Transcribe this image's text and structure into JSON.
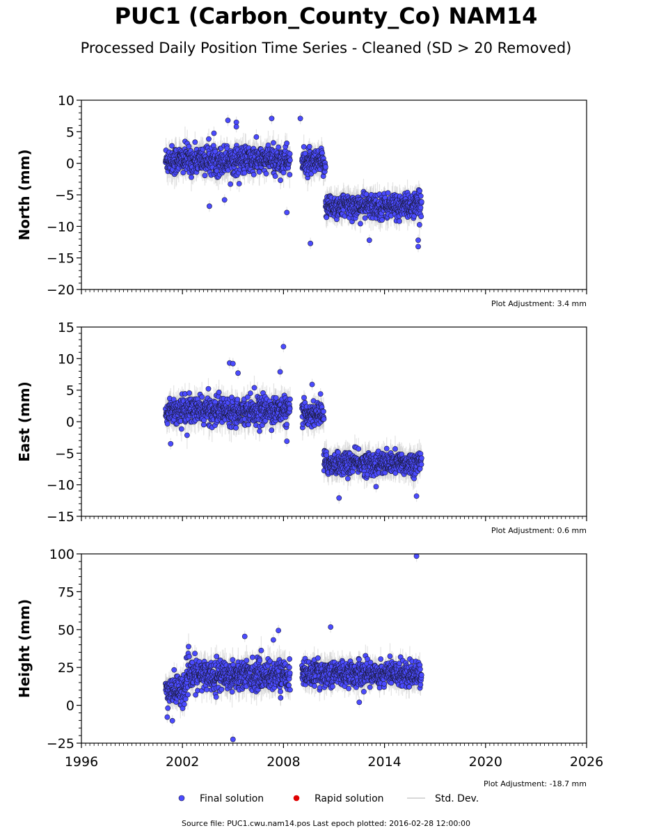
{
  "title": "PUC1 (Carbon_County_Co) NAM14",
  "subtitle": "Processed Daily Position Time Series - Cleaned (SD > 20 Removed)",
  "source_text": "Source file: PUC1.cwu.nam14.pos  Last epoch plotted: 2016-02-28 12:00:00",
  "legend": [
    {
      "label": "Final solution",
      "marker": "circle",
      "color": "#4b4bff"
    },
    {
      "label": "Rapid solution",
      "marker": "circle",
      "color": "#e00000"
    },
    {
      "label": "Std. Dev.",
      "marker": "line",
      "color": "#cccccc"
    }
  ],
  "chart_data": [
    {
      "type": "scatter",
      "ylabel": "North (mm)",
      "ylim": [
        -20,
        10
      ],
      "yticks": [
        "10",
        "5",
        "0",
        "−5",
        "−10",
        "−15",
        "−20"
      ],
      "ytick_values": [
        10,
        5,
        0,
        -5,
        -10,
        -15,
        -20
      ],
      "xlim": [
        1996,
        2026
      ],
      "adjustment": "Plot Adjustment: 3.4 mm",
      "segments": [
        {
          "x_start": 2001.0,
          "x_end": 2008.4,
          "mean": 0.5,
          "scatter": 1.6,
          "sd": 1.6
        },
        {
          "x_start": 2009.1,
          "x_end": 2010.5,
          "mean": 0.0,
          "scatter": 1.4,
          "sd": 1.5
        },
        {
          "x_start": 2010.5,
          "x_end": 2016.2,
          "mean": -6.8,
          "scatter": 1.4,
          "sd": 1.5
        }
      ],
      "outliers": [
        {
          "x": 2004.7,
          "y": 6.8
        },
        {
          "x": 2005.2,
          "y": 6.5
        },
        {
          "x": 2007.3,
          "y": 7.1
        },
        {
          "x": 2009.0,
          "y": 7.1
        },
        {
          "x": 2003.6,
          "y": -6.8
        },
        {
          "x": 2004.5,
          "y": -5.8
        },
        {
          "x": 2008.2,
          "y": -7.8
        },
        {
          "x": 2009.6,
          "y": -12.7
        },
        {
          "x": 2016.0,
          "y": -12.2
        },
        {
          "x": 2016.0,
          "y": -13.2
        },
        {
          "x": 2013.1,
          "y": -12.2
        },
        {
          "x": 2005.2,
          "y": 5.8
        }
      ]
    },
    {
      "type": "scatter",
      "ylabel": "East (mm)",
      "ylim": [
        -15,
        15
      ],
      "yticks": [
        "15",
        "10",
        "5",
        "0",
        "−5",
        "−10",
        "−15"
      ],
      "ytick_values": [
        15,
        10,
        5,
        0,
        -5,
        -10,
        -15
      ],
      "xlim": [
        1996,
        2026
      ],
      "adjustment": "Plot Adjustment: 0.6 mm",
      "segments": [
        {
          "x_start": 2001.0,
          "x_end": 2008.4,
          "mean": 1.8,
          "scatter": 1.5,
          "sd": 1.6
        },
        {
          "x_start": 2009.1,
          "x_end": 2010.4,
          "mean": 1.2,
          "scatter": 1.3,
          "sd": 1.5
        },
        {
          "x_start": 2010.4,
          "x_end": 2016.2,
          "mean": -6.6,
          "scatter": 1.3,
          "sd": 1.5
        }
      ],
      "outliers": [
        {
          "x": 2004.8,
          "y": 9.3
        },
        {
          "x": 2005.0,
          "y": 9.2
        },
        {
          "x": 2007.8,
          "y": 7.9
        },
        {
          "x": 2008.0,
          "y": 11.9
        },
        {
          "x": 2005.3,
          "y": 7.7
        },
        {
          "x": 2008.2,
          "y": -3.1
        },
        {
          "x": 2011.3,
          "y": -12.1
        },
        {
          "x": 2015.9,
          "y": -11.8
        },
        {
          "x": 2009.7,
          "y": 5.9
        },
        {
          "x": 2010.2,
          "y": 4.4
        },
        {
          "x": 2001.3,
          "y": -3.5
        },
        {
          "x": 2013.5,
          "y": -10.3
        }
      ]
    },
    {
      "type": "scatter",
      "ylabel": "Height (mm)",
      "ylim": [
        -25,
        100
      ],
      "yticks": [
        "100",
        "75",
        "50",
        "25",
        "0",
        "−25"
      ],
      "ytick_values": [
        100,
        75,
        50,
        25,
        0,
        -25
      ],
      "xlim": [
        1996,
        2026
      ],
      "xticks": [
        "1996",
        "2002",
        "2008",
        "2014",
        "2020",
        "2026"
      ],
      "xtick_values": [
        1996,
        2002,
        2008,
        2014,
        2020,
        2026
      ],
      "adjustment": "Plot Adjustment: -18.7 mm",
      "segments": [
        {
          "x_start": 2001.0,
          "x_end": 2002.2,
          "mean": 10,
          "scatter": 7,
          "sd": 6
        },
        {
          "x_start": 2002.2,
          "x_end": 2008.4,
          "mean": 20,
          "scatter": 7,
          "sd": 7
        },
        {
          "x_start": 2009.1,
          "x_end": 2016.2,
          "mean": 21,
          "scatter": 6,
          "sd": 6
        }
      ],
      "outliers": [
        {
          "x": 2015.9,
          "y": 98.5
        },
        {
          "x": 2005.0,
          "y": -22.5
        },
        {
          "x": 2010.8,
          "y": 51.7
        },
        {
          "x": 2007.7,
          "y": 49.4
        },
        {
          "x": 2005.7,
          "y": 45.5
        },
        {
          "x": 2001.4,
          "y": -10.2
        },
        {
          "x": 2001.1,
          "y": -7.8
        },
        {
          "x": 2012.5,
          "y": 2.0
        },
        {
          "x": 2007.4,
          "y": 43.2
        }
      ]
    }
  ]
}
